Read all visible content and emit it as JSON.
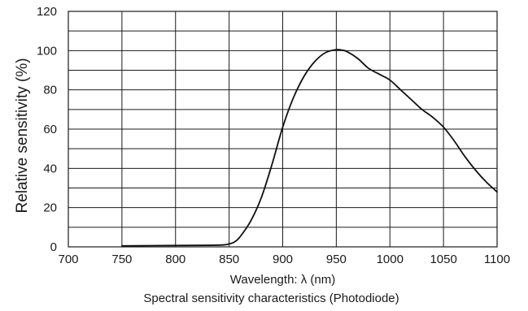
{
  "chart_data": {
    "type": "line",
    "xlabel": "Wavelength: λ (nm)",
    "ylabel": "Relative sensitivity (%)",
    "caption": "Spectral sensitivity characteristics (Photodiode)",
    "xlim": [
      700,
      1100
    ],
    "ylim": [
      0,
      120
    ],
    "x_ticks": [
      700,
      750,
      800,
      850,
      900,
      950,
      1000,
      1050,
      1100
    ],
    "y_ticks": [
      0,
      20,
      40,
      60,
      80,
      100,
      120
    ],
    "x_grid_step": 50,
    "y_grid_step": 10,
    "grid": true,
    "series": [
      {
        "x": [
          750,
          800,
          830,
          845,
          850,
          855,
          860,
          870,
          880,
          890,
          900,
          910,
          920,
          930,
          940,
          950,
          955,
          960,
          970,
          980,
          990,
          1000,
          1010,
          1020,
          1030,
          1040,
          1050,
          1060,
          1070,
          1080,
          1090,
          1100
        ],
        "y": [
          0.5,
          0.7,
          0.8,
          1.0,
          1.5,
          2.5,
          5,
          13,
          25,
          42,
          61,
          76,
          87,
          94.5,
          99,
          100.5,
          100.3,
          99.5,
          96,
          91,
          88,
          85,
          80,
          75,
          70,
          66,
          61,
          54,
          46,
          39,
          33,
          28
        ]
      }
    ],
    "colors": {
      "line": "#111111",
      "grid": "#1a1a1a",
      "background": "#ffffff"
    }
  }
}
